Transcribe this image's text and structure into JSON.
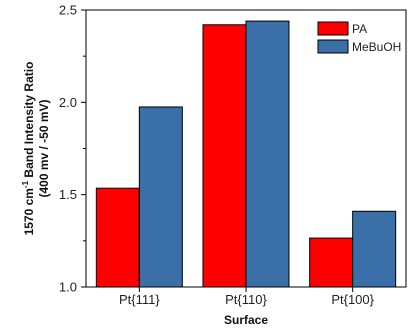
{
  "chart_data": {
    "type": "bar",
    "categories": [
      "Pt{111}",
      "Pt{110}",
      "Pt{100}"
    ],
    "series": [
      {
        "name": "PA",
        "values": [
          1.535,
          2.42,
          1.265
        ],
        "color": "#ff0000"
      },
      {
        "name": "MeBuOH",
        "values": [
          1.975,
          2.44,
          1.41
        ],
        "color": "#3a6fa8"
      }
    ],
    "xlabel": "Surface",
    "ylabel": {
      "line1_prefix": "1570 cm",
      "line1_sup": "-1",
      "line1_suffix": " Band Intensity Ratio",
      "line2": "(400 mv / -50 mV)"
    },
    "ylim": [
      1.0,
      2.5
    ],
    "yticks": [
      1.0,
      1.5,
      2.0,
      2.5
    ],
    "ytick_labels": [
      "1.0",
      "1.5",
      "2.0",
      "2.5"
    ],
    "grid": false,
    "legend_position": "top-right"
  }
}
